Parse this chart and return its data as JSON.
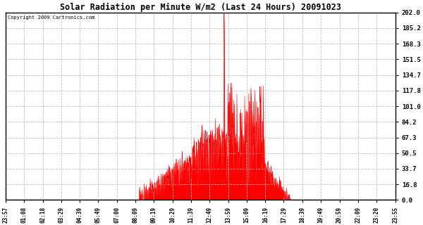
{
  "title": "Solar Radiation per Minute W/m2 (Last 24 Hours) 20091023",
  "copyright_text": "Copyright 2009 Cartronics.com",
  "bar_color": "#ff0000",
  "background_color": "#ffffff",
  "grid_color": "#c0c0c0",
  "hline_color": "#ff0000",
  "yticks": [
    0.0,
    16.8,
    33.7,
    50.5,
    67.3,
    84.2,
    101.0,
    117.8,
    134.7,
    151.5,
    168.3,
    185.2,
    202.0
  ],
  "ymax": 202.0,
  "ymin": 0.0,
  "xtick_labels": [
    "23:57",
    "01:08",
    "02:18",
    "03:29",
    "04:39",
    "05:49",
    "07:00",
    "08:09",
    "09:19",
    "10:29",
    "11:39",
    "12:49",
    "13:59",
    "15:09",
    "16:19",
    "17:29",
    "18:39",
    "19:49",
    "20:59",
    "22:09",
    "23:20",
    "23:55"
  ],
  "num_points": 1440,
  "figwidth": 6.0,
  "figheight": 3.2,
  "dpi": 100
}
